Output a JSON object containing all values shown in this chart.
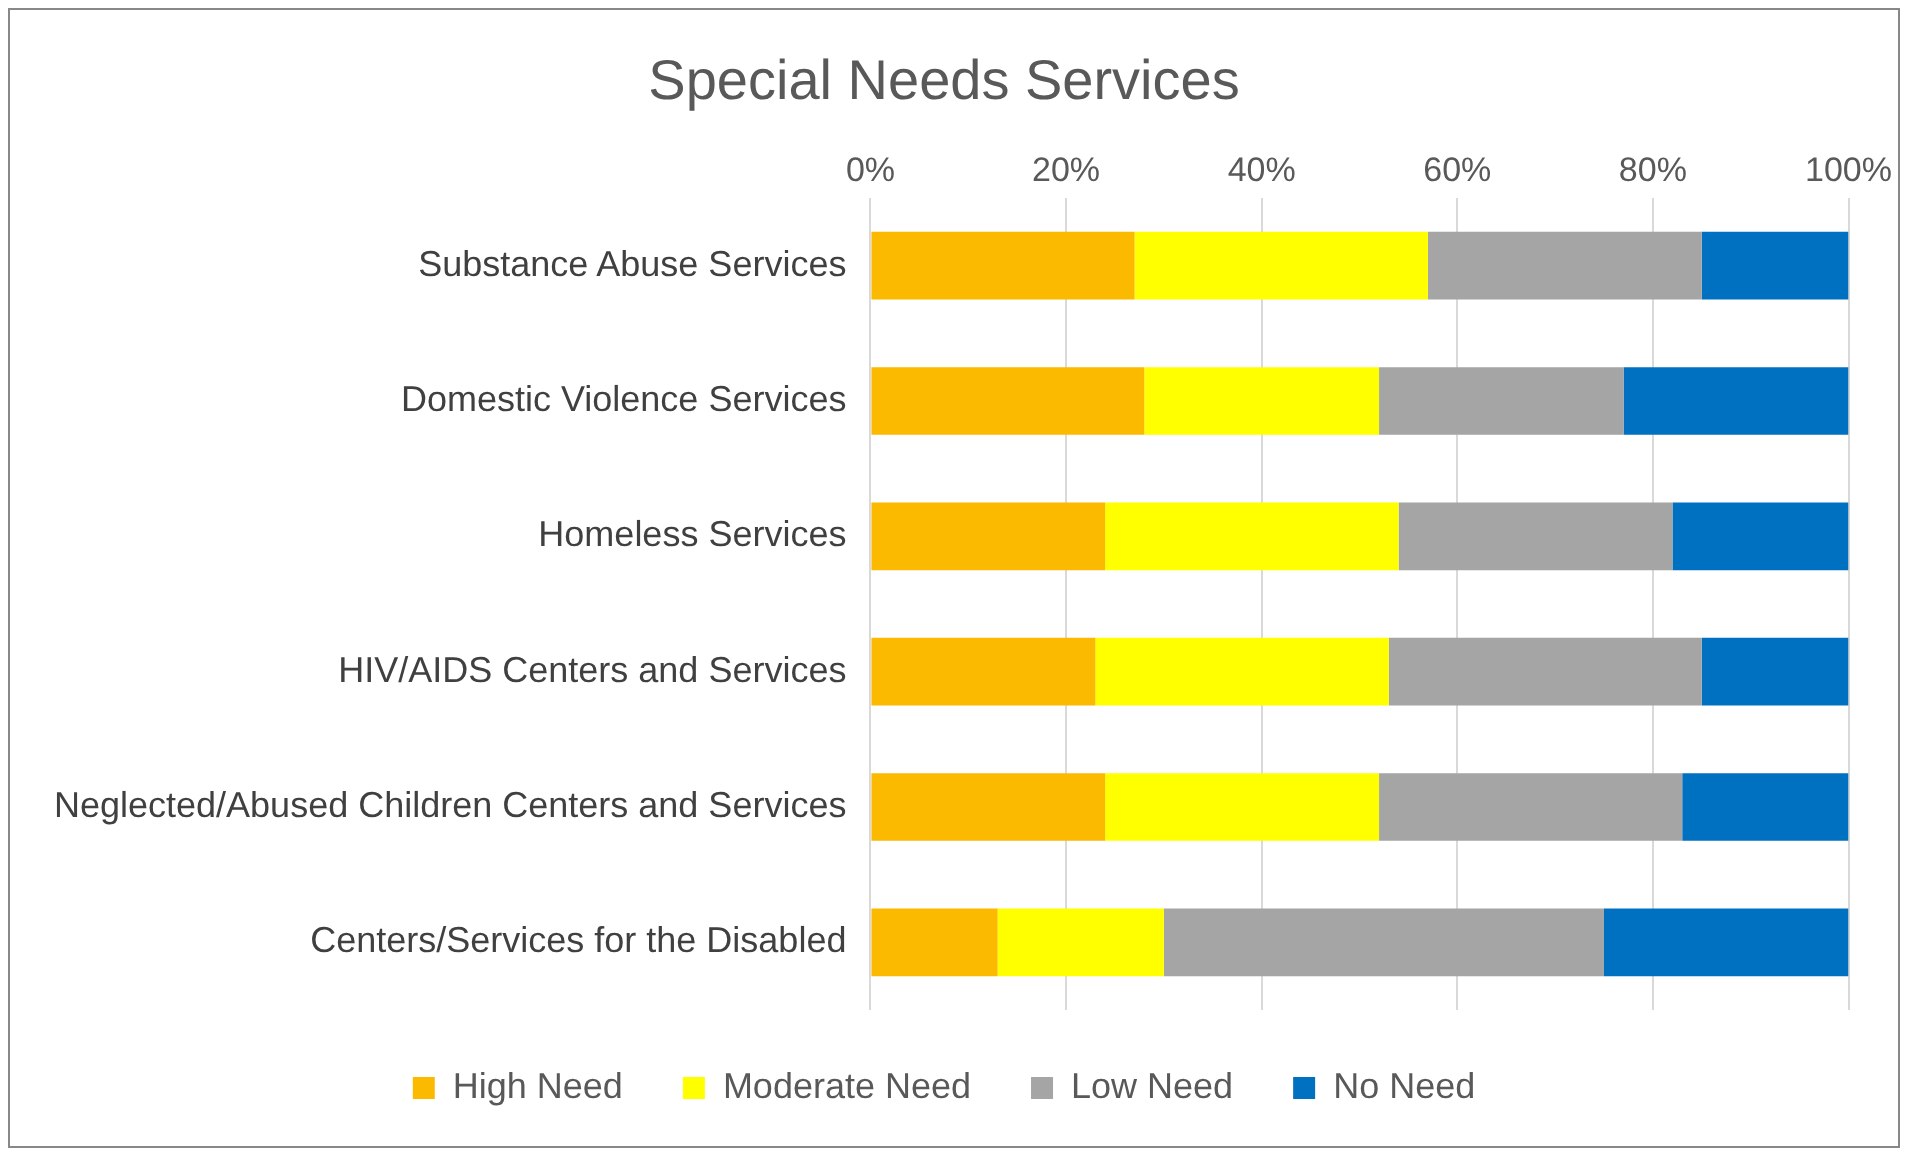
{
  "chart_data": {
    "type": "bar",
    "orientation": "horizontal",
    "stacked": true,
    "title": "Special Needs Services",
    "categories": [
      "Substance Abuse Services",
      "Domestic Violence Services",
      "Homeless Services",
      "HIV/AIDS Centers and Services",
      "Neglected/Abused Children Centers and Services",
      "Centers/Services for the Disabled"
    ],
    "series": [
      {
        "name": "High Need",
        "color": "#fbb900",
        "values": [
          27,
          28,
          24,
          23,
          24,
          13
        ]
      },
      {
        "name": "Moderate Need",
        "color": "#ffff00",
        "values": [
          30,
          24,
          30,
          30,
          28,
          17
        ]
      },
      {
        "name": "Low Need",
        "color": "#a5a5a5",
        "values": [
          28,
          25,
          28,
          32,
          31,
          45
        ]
      },
      {
        "name": "No Need",
        "color": "#0070c0",
        "values": [
          15,
          23,
          18,
          15,
          17,
          25
        ]
      }
    ],
    "xlim": [
      0,
      100
    ],
    "xticks": [
      {
        "value": 0,
        "label": "0%"
      },
      {
        "value": 20,
        "label": "20%"
      },
      {
        "value": 40,
        "label": "40%"
      },
      {
        "value": 60,
        "label": "60%"
      },
      {
        "value": 80,
        "label": "80%"
      },
      {
        "value": 100,
        "label": "100%"
      }
    ],
    "grid": "x",
    "legend": "bottom"
  }
}
